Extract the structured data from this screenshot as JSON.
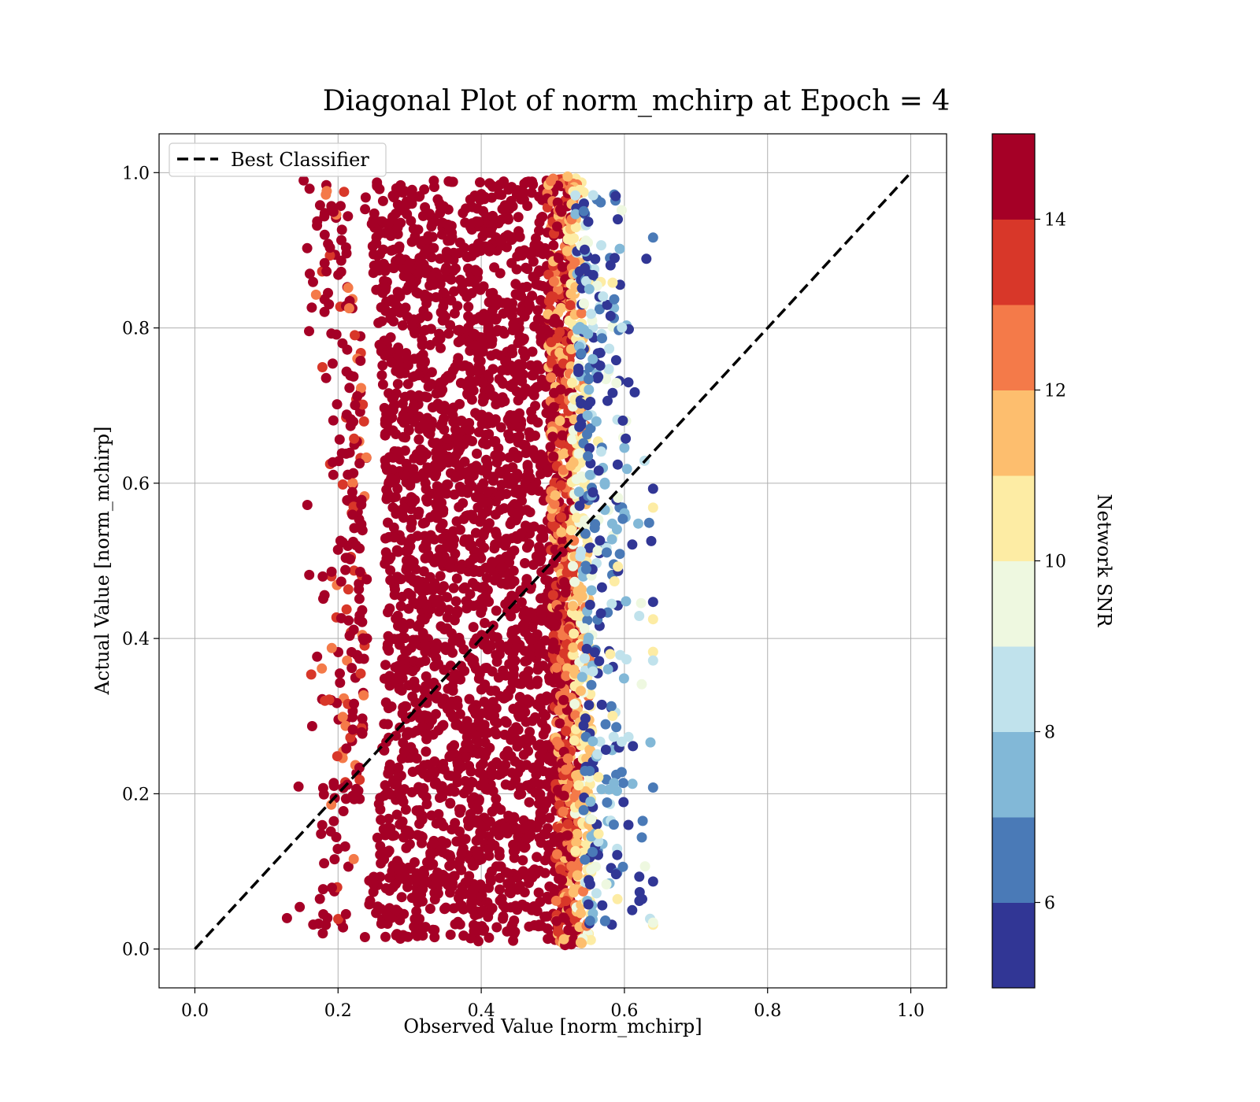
{
  "chart_data": {
    "type": "scatter",
    "title": "Diagonal Plot of norm_mchirp at Epoch = 4",
    "xlabel": "Observed Value [norm_mchirp]",
    "ylabel": "Actual Value [norm_mchirp]",
    "xlim": [
      -0.05,
      1.05
    ],
    "ylim": [
      -0.05,
      1.05
    ],
    "x_ticks": [
      "0.0",
      "0.2",
      "0.4",
      "0.6",
      "0.8",
      "1.0"
    ],
    "y_ticks": [
      "0.0",
      "0.2",
      "0.4",
      "0.6",
      "0.8",
      "1.0"
    ],
    "grid": true,
    "legend": {
      "placement": "top-left",
      "entries": [
        "Best Classifier"
      ]
    },
    "best_classifier_line": {
      "name": "Best Classifier",
      "x": [
        0.0,
        1.0
      ],
      "y": [
        0.0,
        1.0
      ],
      "style": "dashed",
      "color": "#000000"
    },
    "scatter_summary": {
      "dense_core_x_range": [
        0.27,
        0.52
      ],
      "y_range": [
        0.0,
        1.0
      ],
      "outlier_x_range": [
        0.17,
        0.64
      ],
      "note_color_by": "Network SNR"
    },
    "colorbar": {
      "label": "Network SNR",
      "range": [
        5,
        15
      ],
      "tick_labels": [
        "6",
        "8",
        "10",
        "12",
        "14"
      ],
      "tick_values": [
        6,
        8,
        10,
        12,
        14
      ],
      "bins": [
        {
          "from": 5,
          "to": 6,
          "color": "#313695"
        },
        {
          "from": 6,
          "to": 7,
          "color": "#4a7ab7"
        },
        {
          "from": 7,
          "to": 8,
          "color": "#82b8d7"
        },
        {
          "from": 8,
          "to": 9,
          "color": "#c0e2ec"
        },
        {
          "from": 9,
          "to": 10,
          "color": "#eef8e0"
        },
        {
          "from": 10,
          "to": 11,
          "color": "#fdeca4"
        },
        {
          "from": 11,
          "to": 12,
          "color": "#fdbe6e"
        },
        {
          "from": 12,
          "to": 13,
          "color": "#f47a49"
        },
        {
          "from": 13,
          "to": 14,
          "color": "#d83729"
        },
        {
          "from": 14,
          "to": 15,
          "color": "#a50026"
        }
      ]
    }
  }
}
